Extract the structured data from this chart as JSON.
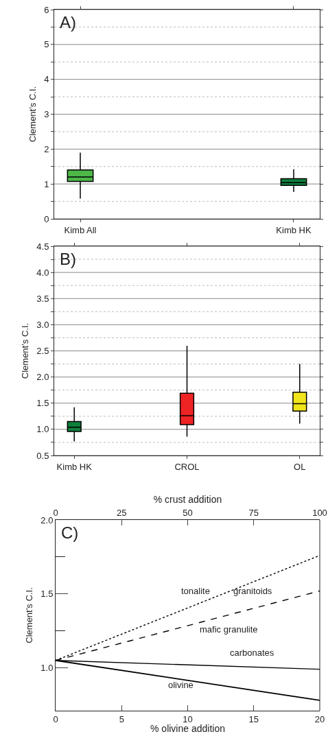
{
  "chart_data": [
    {
      "type": "box",
      "title": "A)",
      "ylabel": "Clement’s C.I.",
      "categories": [
        "Kimb All",
        "Kimb HK"
      ],
      "colors": [
        "#4db848",
        "#0f7f3c"
      ],
      "boxes": [
        {
          "low": 0.58,
          "q1": 1.07,
          "median": 1.2,
          "q3": 1.4,
          "high": 1.9
        },
        {
          "low": 0.77,
          "q1": 0.96,
          "median": 1.04,
          "q3": 1.15,
          "high": 1.42
        }
      ],
      "ylim": [
        0,
        6
      ],
      "yticks": [
        0,
        {
          "value": 0.5,
          "label": null
        },
        1,
        {
          "value": 1.5,
          "label": null
        },
        2,
        {
          "value": 2.5,
          "label": null
        },
        3,
        {
          "value": 3.5,
          "label": null
        },
        4,
        {
          "value": 4.5,
          "label": null
        },
        5,
        {
          "value": 5.5,
          "label": null
        },
        6
      ],
      "grid": true
    },
    {
      "type": "box",
      "title": "B)",
      "ylabel": "Clement’s C.I.",
      "categories": [
        "Kimb HK",
        "CROL",
        "OL"
      ],
      "colors": [
        "#0f7f3c",
        "#ee2324",
        "#f0e51a"
      ],
      "boxes": [
        {
          "low": 0.77,
          "q1": 0.96,
          "median": 1.04,
          "q3": 1.15,
          "high": 1.42
        },
        {
          "low": 0.86,
          "q1": 1.09,
          "median": 1.26,
          "q3": 1.69,
          "high": 2.6
        },
        {
          "low": 1.11,
          "q1": 1.35,
          "median": 1.49,
          "q3": 1.71,
          "high": 2.25
        }
      ],
      "ylim": [
        0.5,
        4.5
      ],
      "yticks": [
        {
          "value": 0.5,
          "label": "0.5"
        },
        {
          "value": 0.75,
          "label": null
        },
        {
          "value": 1,
          "label": "1.0"
        },
        {
          "value": 1.25,
          "label": null
        },
        {
          "value": 1.5,
          "label": "1.5"
        },
        {
          "value": 1.75,
          "label": null
        },
        {
          "value": 2,
          "label": "2.0"
        },
        {
          "value": 2.25,
          "label": null
        },
        {
          "value": 2.5,
          "label": "2.5"
        },
        {
          "value": 2.75,
          "label": null
        },
        {
          "value": 3,
          "label": "3.0"
        },
        {
          "value": 3.25,
          "label": null
        },
        {
          "value": 3.5,
          "label": "3.5"
        },
        {
          "value": 3.75,
          "label": null
        },
        {
          "value": 4,
          "label": "4.0"
        },
        {
          "value": 4.25,
          "label": null
        },
        {
          "value": 4.5,
          "label": "4.5"
        }
      ],
      "grid": true
    },
    {
      "type": "line",
      "title": "C)",
      "xlabel": "% olivine addition",
      "x2label": "% crust addition",
      "ylabel": "Clement’s C.I.",
      "xlim": [
        0,
        20
      ],
      "xticks": [
        0,
        5,
        10,
        15,
        20
      ],
      "x2lim": [
        0,
        100
      ],
      "x2ticks": [
        0,
        25,
        50,
        75,
        100
      ],
      "ylim": [
        0.71,
        2.0
      ],
      "yticks": [
        {
          "value": 1,
          "label": "1.0"
        },
        {
          "value": 1.25,
          "label": null
        },
        {
          "value": 1.5,
          "label": "1.5"
        },
        {
          "value": 1.75,
          "label": null
        },
        {
          "value": 2,
          "label": "2.0"
        }
      ],
      "series": [
        {
          "x": [
            0,
            100
          ],
          "values": [
            1.05,
            1.76
          ],
          "axis": "x2",
          "line_style": "dotted",
          "color": "#000000"
        },
        {
          "x": [
            0,
            100
          ],
          "values": [
            1.05,
            1.52
          ],
          "axis": "x2",
          "line_style": "dashed",
          "color": "#000000"
        },
        {
          "x": [
            0,
            100
          ],
          "values": [
            1.05,
            0.99
          ],
          "axis": "x2",
          "line_style": "solid",
          "color": "#000000"
        },
        {
          "x": [
            0,
            20
          ],
          "values": [
            1.05,
            0.78
          ],
          "line_style": "solid",
          "color": "#000000"
        }
      ],
      "annotations": [
        "tonalite",
        "granitoids",
        "mafic granulite",
        "carbonates",
        "olivine"
      ]
    }
  ]
}
